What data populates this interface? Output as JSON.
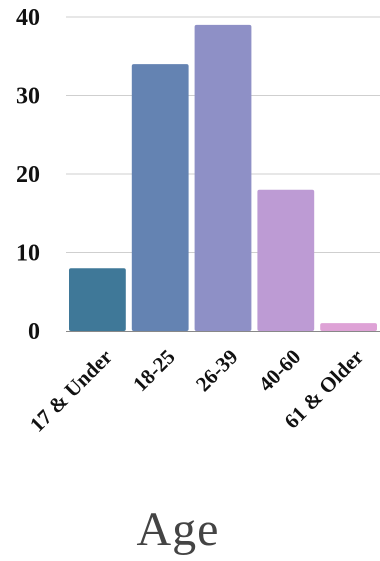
{
  "chart_data": {
    "type": "bar",
    "categories": [
      "17 & Under",
      "18-25",
      "26-39",
      "40-60",
      "61 & Older"
    ],
    "values": [
      8,
      34,
      39,
      18,
      1
    ],
    "title": "",
    "xlabel": "Age",
    "ylabel": "",
    "ylim": [
      0,
      40
    ],
    "yticks": [
      0,
      10,
      20,
      30,
      40
    ],
    "grid": true,
    "legend": "none",
    "colors": [
      "#3f7898",
      "#6483b2",
      "#8e90c6",
      "#bd9bd4",
      "#dea2d6"
    ]
  }
}
